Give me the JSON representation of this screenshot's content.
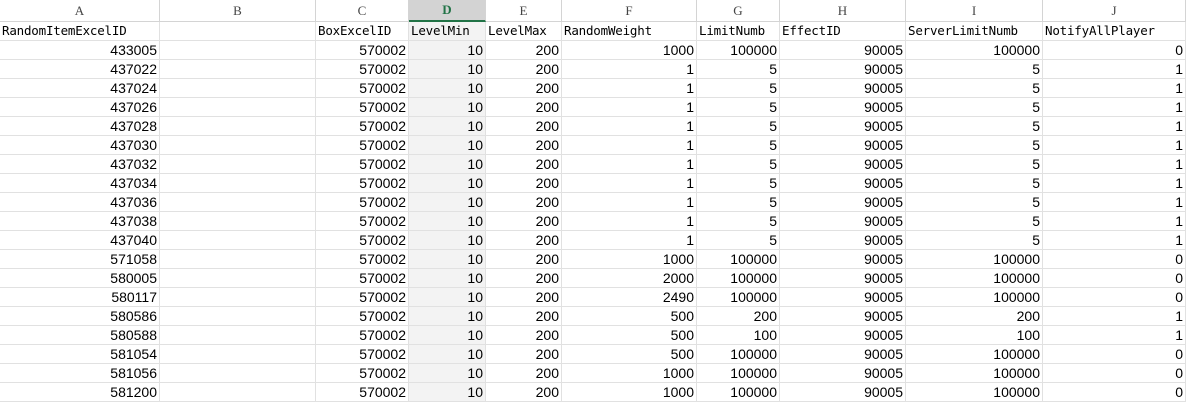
{
  "columns": [
    "A",
    "B",
    "C",
    "D",
    "E",
    "F",
    "G",
    "H",
    "I",
    "J"
  ],
  "active_column": "D",
  "header_row": [
    "RandomItemExcelID",
    "",
    "BoxExcelID",
    "LevelMin",
    "LevelMax",
    "RandomWeight",
    "LimitNumb",
    "EffectID",
    "ServerLimitNumb",
    "NotifyAllPlayer"
  ],
  "rows": [
    [
      "433005",
      "",
      "570002",
      "10",
      "200",
      "1000",
      "100000",
      "90005",
      "100000",
      "0"
    ],
    [
      "437022",
      "",
      "570002",
      "10",
      "200",
      "1",
      "5",
      "90005",
      "5",
      "1"
    ],
    [
      "437024",
      "",
      "570002",
      "10",
      "200",
      "1",
      "5",
      "90005",
      "5",
      "1"
    ],
    [
      "437026",
      "",
      "570002",
      "10",
      "200",
      "1",
      "5",
      "90005",
      "5",
      "1"
    ],
    [
      "437028",
      "",
      "570002",
      "10",
      "200",
      "1",
      "5",
      "90005",
      "5",
      "1"
    ],
    [
      "437030",
      "",
      "570002",
      "10",
      "200",
      "1",
      "5",
      "90005",
      "5",
      "1"
    ],
    [
      "437032",
      "",
      "570002",
      "10",
      "200",
      "1",
      "5",
      "90005",
      "5",
      "1"
    ],
    [
      "437034",
      "",
      "570002",
      "10",
      "200",
      "1",
      "5",
      "90005",
      "5",
      "1"
    ],
    [
      "437036",
      "",
      "570002",
      "10",
      "200",
      "1",
      "5",
      "90005",
      "5",
      "1"
    ],
    [
      "437038",
      "",
      "570002",
      "10",
      "200",
      "1",
      "5",
      "90005",
      "5",
      "1"
    ],
    [
      "437040",
      "",
      "570002",
      "10",
      "200",
      "1",
      "5",
      "90005",
      "5",
      "1"
    ],
    [
      "571058",
      "",
      "570002",
      "10",
      "200",
      "1000",
      "100000",
      "90005",
      "100000",
      "0"
    ],
    [
      "580005",
      "",
      "570002",
      "10",
      "200",
      "2000",
      "100000",
      "90005",
      "100000",
      "0"
    ],
    [
      "580117",
      "",
      "570002",
      "10",
      "200",
      "2490",
      "100000",
      "90005",
      "100000",
      "0"
    ],
    [
      "580586",
      "",
      "570002",
      "10",
      "200",
      "500",
      "200",
      "90005",
      "200",
      "1"
    ],
    [
      "580588",
      "",
      "570002",
      "10",
      "200",
      "500",
      "100",
      "90005",
      "100",
      "1"
    ],
    [
      "581054",
      "",
      "570002",
      "10",
      "200",
      "500",
      "100000",
      "90005",
      "100000",
      "0"
    ],
    [
      "581056",
      "",
      "570002",
      "10",
      "200",
      "1000",
      "100000",
      "90005",
      "100000",
      "0"
    ],
    [
      "581200",
      "",
      "570002",
      "10",
      "200",
      "1000",
      "100000",
      "90005",
      "100000",
      "0"
    ]
  ]
}
